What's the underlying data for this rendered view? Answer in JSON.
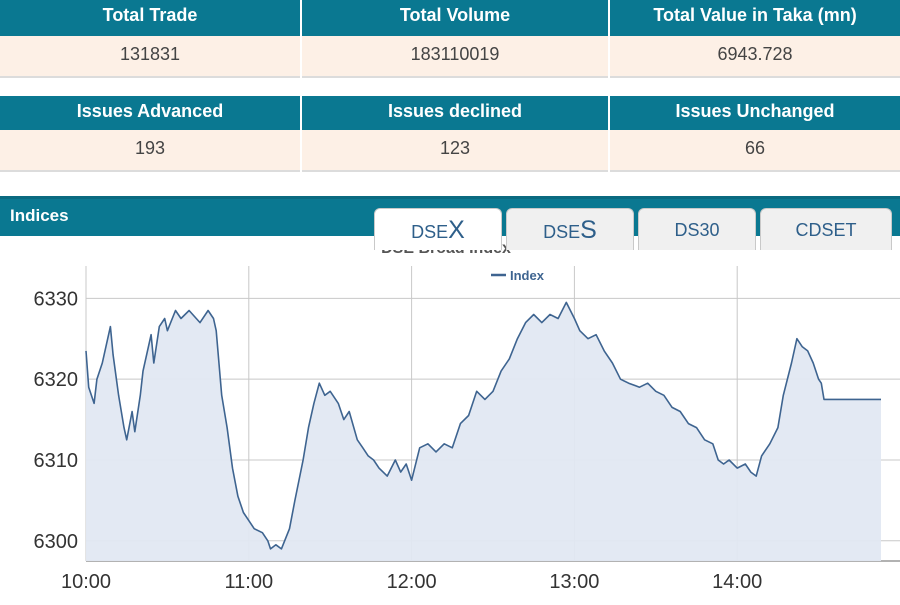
{
  "summary": {
    "row1": {
      "headers": [
        "Total Trade",
        "Total Volume",
        "Total Value in Taka (mn)"
      ],
      "values": [
        "131831",
        "183110019",
        "6943.728"
      ]
    },
    "row2": {
      "headers": [
        "Issues Advanced",
        "Issues declined",
        "Issues Unchanged"
      ],
      "values": [
        "193",
        "123",
        "66"
      ]
    }
  },
  "indices": {
    "title": "Indices",
    "tabs": [
      {
        "prefix": "DSE",
        "suffix": "X",
        "active": true
      },
      {
        "prefix": "DSE",
        "suffix": "S",
        "active": false
      },
      {
        "label": "DS30",
        "active": false
      },
      {
        "label": "CDSET",
        "active": false
      }
    ]
  },
  "colors": {
    "header": "#0a7891",
    "value_row": "#fdf0e6",
    "line": "#3e6490",
    "fill": "#e2e8f2",
    "tab_text": "#2e5f8a"
  },
  "chart_data": {
    "type": "area",
    "title": "DSE Broad Index",
    "legend": {
      "label": "Index",
      "placement": "top-center"
    },
    "grid": true,
    "xlabel": "",
    "ylabel": "",
    "ylim": [
      6297.5,
      6334
    ],
    "yticks": [
      6300,
      6310,
      6320,
      6330
    ],
    "ytick_labels": [
      "6300",
      "6310",
      "6320",
      "6330"
    ],
    "xlim": [
      "10:00",
      "15:00"
    ],
    "xticks": [
      "10:00",
      "11:00",
      "12:00",
      "13:00",
      "14:00"
    ],
    "series": [
      {
        "name": "Index",
        "points": [
          [
            "10:00",
            6323.5
          ],
          [
            "10:01",
            6319
          ],
          [
            "10:03",
            6317
          ],
          [
            "10:04",
            6320
          ],
          [
            "10:06",
            6322
          ],
          [
            "10:08",
            6325
          ],
          [
            "10:09",
            6326.5
          ],
          [
            "10:10",
            6323
          ],
          [
            "10:12",
            6318
          ],
          [
            "10:14",
            6314
          ],
          [
            "10:15",
            6312.5
          ],
          [
            "10:17",
            6316
          ],
          [
            "10:18",
            6313.5
          ],
          [
            "10:20",
            6318
          ],
          [
            "10:21",
            6321
          ],
          [
            "10:24",
            6325.5
          ],
          [
            "10:25",
            6322
          ],
          [
            "10:27",
            6326.5
          ],
          [
            "10:29",
            6327.5
          ],
          [
            "10:30",
            6326
          ],
          [
            "10:33",
            6328.5
          ],
          [
            "10:35",
            6327.5
          ],
          [
            "10:38",
            6328.5
          ],
          [
            "10:42",
            6327
          ],
          [
            "10:45",
            6328.5
          ],
          [
            "10:47",
            6327.5
          ],
          [
            "10:48",
            6326
          ],
          [
            "10:50",
            6318
          ],
          [
            "10:52",
            6314
          ],
          [
            "10:54",
            6309
          ],
          [
            "10:56",
            6305.5
          ],
          [
            "10:58",
            6303.5
          ],
          [
            "11:00",
            6302.5
          ],
          [
            "11:02",
            6301.5
          ],
          [
            "11:05",
            6301
          ],
          [
            "11:07",
            6300
          ],
          [
            "11:08",
            6299
          ],
          [
            "11:10",
            6299.5
          ],
          [
            "11:12",
            6299
          ],
          [
            "11:15",
            6301.5
          ],
          [
            "11:17",
            6305
          ],
          [
            "11:20",
            6310
          ],
          [
            "11:22",
            6314
          ],
          [
            "11:24",
            6317
          ],
          [
            "11:26",
            6319.5
          ],
          [
            "11:28",
            6318
          ],
          [
            "11:30",
            6318.5
          ],
          [
            "11:33",
            6317
          ],
          [
            "11:35",
            6315
          ],
          [
            "11:37",
            6316
          ],
          [
            "11:40",
            6312.5
          ],
          [
            "11:42",
            6311.5
          ],
          [
            "11:44",
            6310.5
          ],
          [
            "11:46",
            6310
          ],
          [
            "11:48",
            6309
          ],
          [
            "11:51",
            6308
          ],
          [
            "11:54",
            6310
          ],
          [
            "11:56",
            6308.5
          ],
          [
            "11:58",
            6309.5
          ],
          [
            "12:00",
            6307.5
          ],
          [
            "12:03",
            6311.5
          ],
          [
            "12:06",
            6312
          ],
          [
            "12:09",
            6311
          ],
          [
            "12:12",
            6312
          ],
          [
            "12:15",
            6311.5
          ],
          [
            "12:18",
            6314.5
          ],
          [
            "12:21",
            6315.5
          ],
          [
            "12:24",
            6318.5
          ],
          [
            "12:27",
            6317.5
          ],
          [
            "12:30",
            6318.5
          ],
          [
            "12:33",
            6321
          ],
          [
            "12:36",
            6322.5
          ],
          [
            "12:39",
            6325
          ],
          [
            "12:42",
            6327
          ],
          [
            "12:45",
            6328
          ],
          [
            "12:48",
            6327
          ],
          [
            "12:51",
            6328
          ],
          [
            "12:54",
            6327.5
          ],
          [
            "12:57",
            6329.5
          ],
          [
            "13:00",
            6327.5
          ],
          [
            "13:02",
            6326
          ],
          [
            "13:05",
            6325
          ],
          [
            "13:08",
            6325.5
          ],
          [
            "13:11",
            6323.5
          ],
          [
            "13:14",
            6322
          ],
          [
            "13:17",
            6320
          ],
          [
            "13:20",
            6319.5
          ],
          [
            "13:24",
            6319
          ],
          [
            "13:27",
            6319.5
          ],
          [
            "13:30",
            6318.5
          ],
          [
            "13:33",
            6318
          ],
          [
            "13:36",
            6316.5
          ],
          [
            "13:39",
            6316
          ],
          [
            "13:42",
            6314.5
          ],
          [
            "13:45",
            6314
          ],
          [
            "13:48",
            6312.5
          ],
          [
            "13:51",
            6312
          ],
          [
            "13:53",
            6310
          ],
          [
            "13:55",
            6309.5
          ],
          [
            "13:57",
            6310
          ],
          [
            "14:00",
            6309
          ],
          [
            "14:03",
            6309.5
          ],
          [
            "14:05",
            6308.5
          ],
          [
            "14:07",
            6308
          ],
          [
            "14:09",
            6310.5
          ],
          [
            "14:12",
            6312
          ],
          [
            "14:15",
            6314
          ],
          [
            "14:17",
            6318
          ],
          [
            "14:20",
            6322
          ],
          [
            "14:22",
            6325
          ],
          [
            "14:24",
            6324
          ],
          [
            "14:26",
            6323.5
          ],
          [
            "14:28",
            6322
          ],
          [
            "14:29",
            6321
          ],
          [
            "14:30",
            6320
          ],
          [
            "14:31",
            6319.5
          ],
          [
            "14:32",
            6317.5
          ],
          [
            "14:40",
            6317.5
          ],
          [
            "14:50",
            6317.5
          ],
          [
            "14:53",
            6317.5
          ]
        ]
      }
    ]
  }
}
